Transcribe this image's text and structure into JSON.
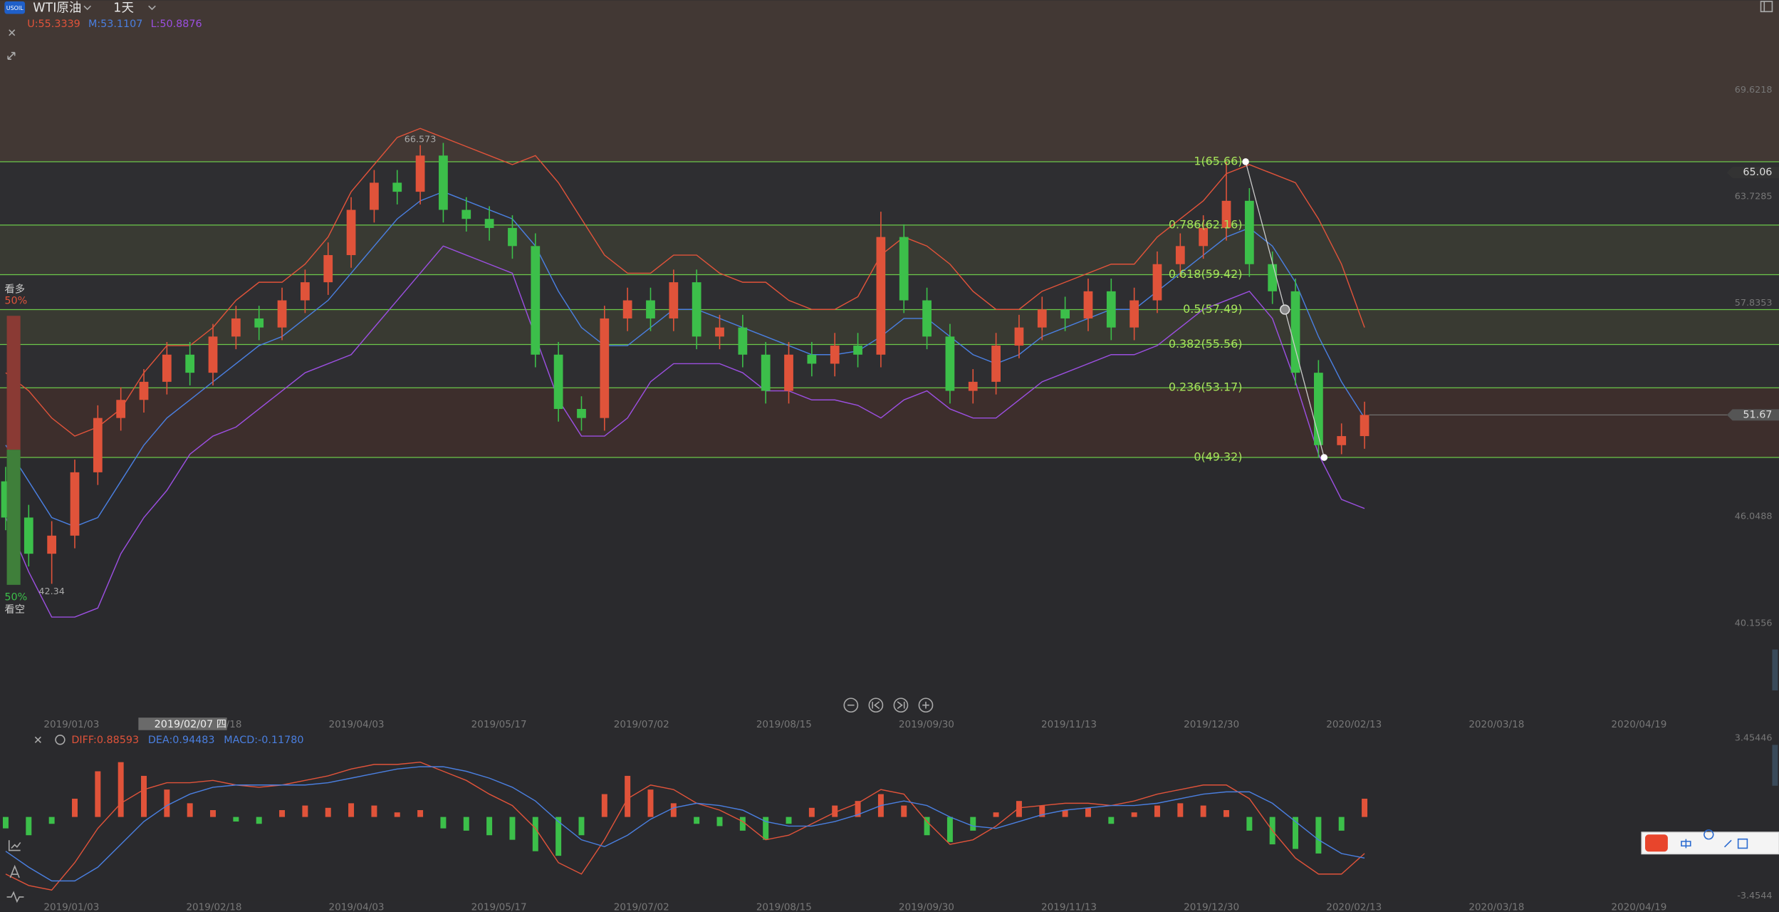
{
  "header": {
    "badge": "USOIL",
    "symbol": "WTI原油",
    "period": "1天",
    "sentiment": {
      "bull_label": "看多",
      "bull_pct": "50%",
      "bear_pct": "50%",
      "bear_label": "看空"
    },
    "crosshair_date": "2019/02/07 四"
  },
  "chart_data": [
    {
      "type": "candlestick",
      "legend": [
        {
          "label": "U:55.3339",
          "color": "#e0533a"
        },
        {
          "label": "M:53.1107",
          "color": "#4a7fe0"
        },
        {
          "label": "L:50.8876",
          "color": "#9b4fe0"
        }
      ],
      "candles": [
        [
          48,
          48.8,
          45.3,
          46
        ],
        [
          46,
          46.7,
          43.3,
          44
        ],
        [
          44,
          45.8,
          42.34,
          45
        ],
        [
          45,
          49.2,
          44.3,
          48.5
        ],
        [
          48.5,
          52.2,
          47.8,
          51.5
        ],
        [
          51.5,
          53.2,
          50.8,
          52.5
        ],
        [
          52.5,
          54.2,
          51.8,
          53.5
        ],
        [
          53.5,
          55.7,
          52.8,
          55
        ],
        [
          55,
          55.7,
          53.3,
          54
        ],
        [
          54,
          56.7,
          53.3,
          56
        ],
        [
          56,
          57.7,
          55.3,
          57
        ],
        [
          57,
          57.7,
          55.8,
          56.5
        ],
        [
          56.5,
          58.7,
          55.8,
          58
        ],
        [
          58,
          59.7,
          57.3,
          59
        ],
        [
          59,
          61.2,
          58.3,
          60.5
        ],
        [
          60.5,
          63.7,
          59.8,
          63
        ],
        [
          63,
          65.2,
          62.3,
          64.5
        ],
        [
          64.5,
          65.2,
          63.3,
          64
        ],
        [
          64,
          66.573,
          63.3,
          66
        ],
        [
          66,
          66.7,
          62.3,
          63
        ],
        [
          63,
          63.7,
          61.8,
          62.5
        ],
        [
          62.5,
          63.2,
          61.3,
          62
        ],
        [
          62,
          62.7,
          60.3,
          61
        ],
        [
          61,
          61.7,
          54.3,
          55
        ],
        [
          55,
          55.7,
          51.3,
          52
        ],
        [
          52,
          52.7,
          50.8,
          51.5
        ],
        [
          51.5,
          57.7,
          50.8,
          57
        ],
        [
          57,
          58.7,
          56.3,
          58
        ],
        [
          58,
          58.7,
          56.3,
          57
        ],
        [
          57,
          59.7,
          56.3,
          59
        ],
        [
          59,
          59.7,
          55.3,
          56
        ],
        [
          56,
          57.2,
          55.3,
          56.5
        ],
        [
          56.5,
          57.2,
          54.3,
          55
        ],
        [
          55,
          55.7,
          52.3,
          53
        ],
        [
          53,
          55.7,
          52.3,
          55
        ],
        [
          55,
          55.7,
          53.8,
          54.5
        ],
        [
          54.5,
          56.2,
          53.8,
          55.5
        ],
        [
          55.5,
          56.2,
          54.3,
          55
        ],
        [
          55,
          62.9,
          54.3,
          61.5
        ],
        [
          61.5,
          62.2,
          57.3,
          58
        ],
        [
          58,
          58.7,
          55.3,
          56
        ],
        [
          56,
          56.7,
          52.3,
          53
        ],
        [
          53,
          54.2,
          52.3,
          53.5
        ],
        [
          53.5,
          56.2,
          52.8,
          55.5
        ],
        [
          55.5,
          57.2,
          54.8,
          56.5
        ],
        [
          56.5,
          58.2,
          55.8,
          57.5
        ],
        [
          57.5,
          58.2,
          56.3,
          57
        ],
        [
          57,
          59.2,
          56.3,
          58.5
        ],
        [
          58.5,
          59.2,
          55.8,
          56.5
        ],
        [
          56.5,
          58.7,
          55.8,
          58
        ],
        [
          58,
          60.7,
          57.3,
          60
        ],
        [
          60,
          61.7,
          59.3,
          61
        ],
        [
          61,
          62.7,
          60.3,
          62
        ],
        [
          62,
          65.66,
          61.3,
          63.5
        ],
        [
          63.5,
          64.2,
          59.3,
          60
        ],
        [
          60,
          60.7,
          57.8,
          58.5
        ],
        [
          58.5,
          59.2,
          53.3,
          54
        ],
        [
          54,
          54.7,
          49.32,
          50
        ],
        [
          50,
          51.2,
          49.5,
          50.5
        ],
        [
          50.5,
          52.4,
          49.8,
          51.67
        ]
      ],
      "up_color": "#e0533a",
      "down_color": "#3cbf4a",
      "series": [
        {
          "name": "U",
          "color": "#e0533a",
          "values": [
            54,
            53,
            51.5,
            50.5,
            51,
            52,
            54,
            55.5,
            55.5,
            56.5,
            58,
            59,
            59,
            60,
            61.5,
            64,
            65.5,
            67,
            67.5,
            67,
            66.5,
            66,
            65.5,
            66,
            64.5,
            62.5,
            60.5,
            59.5,
            59.5,
            60.5,
            60.5,
            59.5,
            59,
            59,
            58,
            57.5,
            57.5,
            58.2,
            60.5,
            61.5,
            61,
            60,
            58.5,
            57.5,
            57.5,
            58.5,
            59,
            59.5,
            60,
            60,
            61.5,
            62.5,
            63.5,
            65,
            65.5,
            65,
            64.5,
            62.5,
            60,
            56.5
          ]
        },
        {
          "name": "M",
          "color": "#4a7fe0",
          "values": [
            50,
            48,
            46,
            45.5,
            46,
            48,
            50,
            51.5,
            52.5,
            53.5,
            54.5,
            55.5,
            56,
            57,
            58,
            59.5,
            61,
            62.5,
            63.5,
            64,
            63.5,
            63,
            62.5,
            61,
            58.5,
            56.5,
            55.5,
            55.5,
            56.5,
            57.5,
            57.5,
            57,
            56.5,
            56,
            55.5,
            55,
            55,
            55.2,
            56,
            57,
            57,
            56,
            55,
            54.5,
            55,
            56,
            56.5,
            57,
            57.5,
            57.5,
            58.5,
            59.5,
            60.5,
            61.5,
            62,
            61,
            59,
            56,
            53.5,
            51.5
          ]
        },
        {
          "name": "L",
          "color": "#9b4fe0",
          "values": [
            46,
            43,
            40.5,
            40.5,
            41,
            44,
            46,
            47.5,
            49.5,
            50.5,
            51,
            52,
            53,
            54,
            54.5,
            55,
            56.5,
            58,
            59.5,
            61,
            60.5,
            60,
            59.5,
            56,
            52.5,
            50.5,
            50.5,
            51.5,
            53.5,
            54.5,
            54.5,
            54.5,
            54,
            53,
            53,
            52.5,
            52.5,
            52.2,
            51.5,
            52.5,
            53,
            52,
            51.5,
            51.5,
            52.5,
            53.5,
            54,
            54.5,
            55,
            55,
            55.5,
            56.5,
            57.5,
            58,
            58.5,
            57,
            53.5,
            49.5,
            47,
            46.5
          ]
        }
      ],
      "ylim": [
        35.07,
        74.58
      ],
      "yticks": [
        69.6218,
        63.7285,
        57.8353,
        46.0488,
        40.1556
      ],
      "price_tags": [
        65.06,
        51.67
      ],
      "annotations": [
        {
          "label": "66.573",
          "value": 66.573
        },
        {
          "label": "42.34",
          "value": 42.34
        }
      ],
      "fib": [
        {
          "label": "1(65.66)",
          "value": 65.66
        },
        {
          "label": "0.786(62.16)",
          "value": 62.16
        },
        {
          "label": "0.618(59.42)",
          "value": 59.42
        },
        {
          "label": "0.5(57.49)",
          "value": 57.49
        },
        {
          "label": "0.382(55.56)",
          "value": 55.56
        },
        {
          "label": "0.236(53.17)",
          "value": 53.17
        },
        {
          "label": "0(49.32)",
          "value": 49.32
        }
      ],
      "xticks": [
        "2019/01/03",
        "2019/02/18",
        "2019/04/03",
        "2019/05/17",
        "2019/07/02",
        "2019/08/15",
        "2019/09/30",
        "2019/11/13",
        "2019/12/30",
        "2020/02/13",
        "2020/03/18",
        "2020/04/19"
      ]
    },
    {
      "type": "macd",
      "legend": [
        {
          "label": "DIFF:0.88593",
          "color": "#e0533a"
        },
        {
          "label": "DEA:0.94483",
          "color": "#4a7fe0"
        },
        {
          "label": "MACD:-0.11780",
          "color": "#4a7fe0"
        }
      ],
      "series": [
        {
          "name": "DIFF",
          "color": "#e0533a",
          "values": [
            -2.5,
            -3,
            -3.2,
            -2,
            -0.5,
            0.6,
            1.2,
            1.5,
            1.5,
            1.6,
            1.4,
            1.3,
            1.4,
            1.6,
            1.8,
            2.1,
            2.3,
            2.3,
            2.4,
            2,
            1.6,
            1,
            0.5,
            -0.5,
            -2,
            -2.5,
            -1,
            0.8,
            1.4,
            1.2,
            0.6,
            0.3,
            -0.2,
            -1,
            -0.8,
            -0.3,
            0.2,
            0.6,
            1.2,
            1,
            -0.2,
            -1.2,
            -1,
            -0.4,
            0.4,
            0.5,
            0.6,
            0.6,
            0.5,
            0.7,
            1,
            1.2,
            1.4,
            1.4,
            0.8,
            -0.6,
            -1.8,
            -2.5,
            -2.5,
            -1.6
          ]
        },
        {
          "name": "DEA",
          "color": "#4a7fe0",
          "values": [
            -1.5,
            -2.2,
            -2.8,
            -2.8,
            -2.2,
            -1.2,
            -0.2,
            0.5,
            1,
            1.3,
            1.4,
            1.4,
            1.4,
            1.4,
            1.5,
            1.7,
            1.9,
            2.1,
            2.2,
            2.2,
            2,
            1.7,
            1.3,
            0.7,
            -0.2,
            -1,
            -1.3,
            -0.8,
            -0.1,
            0.4,
            0.6,
            0.5,
            0.3,
            -0.2,
            -0.4,
            -0.4,
            -0.2,
            0.1,
            0.5,
            0.7,
            0.5,
            0,
            -0.4,
            -0.5,
            -0.2,
            0.1,
            0.3,
            0.4,
            0.5,
            0.5,
            0.6,
            0.8,
            1,
            1.1,
            1.1,
            0.6,
            -0.2,
            -1,
            -1.6,
            -1.8
          ]
        }
      ],
      "histogram": [
        -0.5,
        -0.8,
        -0.3,
        0.8,
        2,
        2.4,
        1.8,
        1.2,
        0.6,
        0.3,
        -0.2,
        -0.3,
        0.3,
        0.5,
        0.4,
        0.6,
        0.5,
        0.2,
        0.3,
        -0.5,
        -0.6,
        -0.8,
        -1,
        -1.5,
        -1.7,
        -0.8,
        1,
        1.8,
        1.2,
        0.6,
        -0.3,
        -0.4,
        -0.6,
        -1,
        -0.3,
        0.4,
        0.5,
        0.7,
        1,
        0.5,
        -0.8,
        -1.1,
        -0.6,
        0.2,
        0.7,
        0.5,
        0.3,
        0.4,
        -0.3,
        0.2,
        0.5,
        0.6,
        0.5,
        0.3,
        -0.6,
        -1.2,
        -1.4,
        -1.6,
        -0.6,
        0.8
      ],
      "up_color": "#e0533a",
      "down_color": "#3cbf4a",
      "ylim": [
        -3.4544,
        3.45446
      ],
      "yticks": [
        3.45446,
        -3.4544
      ]
    }
  ]
}
